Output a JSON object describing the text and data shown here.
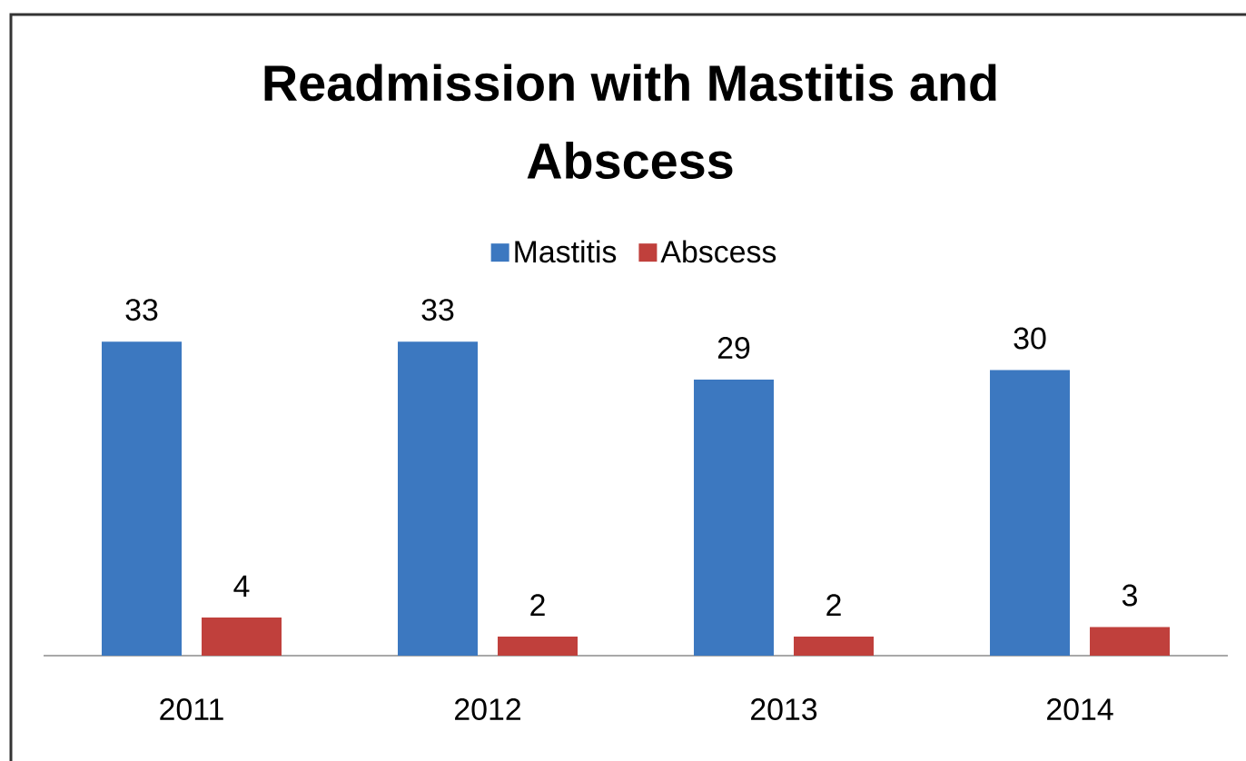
{
  "chart_data": {
    "type": "bar",
    "title": "Readmission with Mastitis and Abscess",
    "categories": [
      "2011",
      "2012",
      "2013",
      "2014"
    ],
    "series": [
      {
        "name": "Mastitis",
        "color": "#3c78c0",
        "values": [
          33,
          33,
          29,
          30
        ]
      },
      {
        "name": "Abscess",
        "color": "#c0403c",
        "values": [
          4,
          2,
          2,
          3
        ]
      }
    ],
    "data_labels": true,
    "legend": "top"
  }
}
